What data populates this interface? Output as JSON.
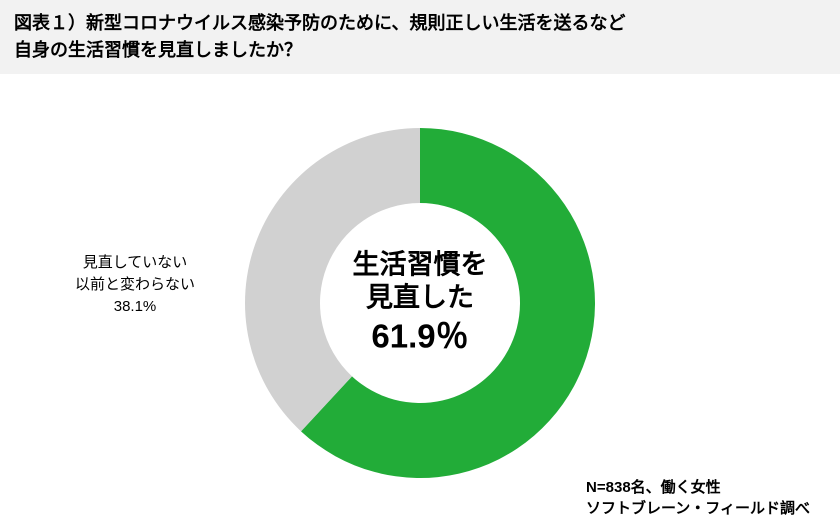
{
  "header": {
    "title_line1": "図表１）新型コロナウイルス感染予防のために、規則正しい生活を送るなど",
    "title_line2": "自身の生活習慣を見直しましたか？",
    "fontsize": 18,
    "color": "#000000",
    "background": "#f2f2f2"
  },
  "chart": {
    "type": "donut",
    "outer_radius": 175,
    "inner_radius": 100,
    "bg": "#ffffff",
    "start_angle_deg": -90,
    "slices": [
      {
        "label_top": "生活習慣を",
        "label_mid": "見直した",
        "value": 61.9,
        "color": "#22ac38"
      },
      {
        "label_top": "見直していない",
        "label_mid": "以前と変わらない",
        "value": 38.1,
        "color": "#d1d1d1"
      }
    ],
    "center_label": {
      "line1": "生活習慣を",
      "line2": "見直した",
      "line3": "61.9％",
      "fontsize_lines": 27,
      "fontsize_value": 33,
      "color": "#000000"
    },
    "left_label": {
      "line1": "見直していない",
      "line2": "以前と変わらない",
      "line3": "38.1%",
      "fontsize": 15,
      "color": "#000000"
    }
  },
  "footer": {
    "line1": "N=838名、働く女性",
    "line2": "ソフトブレーン・フィールド調べ",
    "fontsize": 15,
    "color": "#000000"
  }
}
